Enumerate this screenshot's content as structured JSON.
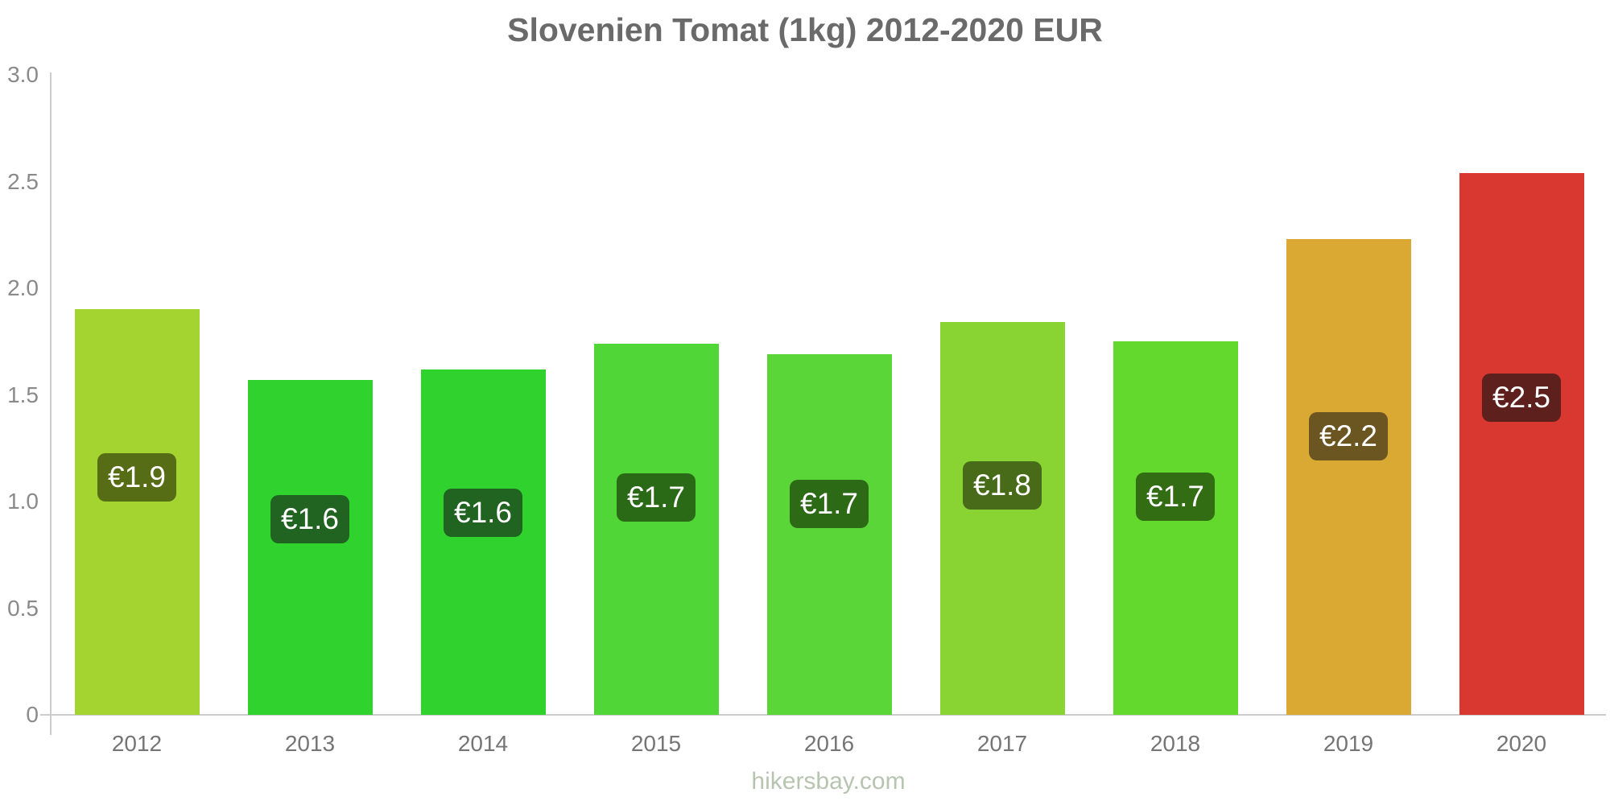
{
  "title": "Slovenien Tomat (1kg) 2012-2020 EUR",
  "footer": "hikersbay.com",
  "colors": {
    "axis": "#cccccc",
    "title_text": "#6a6a6a",
    "y_tick_text": "#8a8a8a",
    "x_tick_text": "#757575",
    "footer_text": "#b7c4b0",
    "bar_label_text": "#ffffff"
  },
  "chart_data": {
    "type": "bar",
    "title": "Slovenien Tomat (1kg) 2012-2020 EUR",
    "currency": "EUR",
    "categories": [
      "2012",
      "2013",
      "2014",
      "2015",
      "2016",
      "2017",
      "2018",
      "2019",
      "2020"
    ],
    "values": [
      1.9,
      1.57,
      1.62,
      1.74,
      1.69,
      1.84,
      1.75,
      2.23,
      2.54
    ],
    "bar_labels": [
      "€1.9",
      "€1.6",
      "€1.6",
      "€1.7",
      "€1.7",
      "€1.8",
      "€1.7",
      "€2.2",
      "€2.5"
    ],
    "bar_colors": [
      "#a4d42f",
      "#30d32e",
      "#30d32e",
      "#50d636",
      "#5ad638",
      "#89d433",
      "#63d92e",
      "#d9a934",
      "#d93831"
    ],
    "label_bg_colors": [
      "#566d15",
      "#216421",
      "#216421",
      "#2a6a16",
      "#2d6a16",
      "#476b19",
      "#326c13",
      "#6b5520",
      "#5e201c"
    ],
    "xlabel": "",
    "ylabel": "",
    "ylim": [
      0,
      3.0
    ],
    "y_ticks": [
      "3.0",
      "2.5",
      "2.0",
      "1.5",
      "1.0",
      "0.5",
      "0"
    ],
    "y_tick_values": [
      3.0,
      2.5,
      2.0,
      1.5,
      1.0,
      0.5,
      0
    ],
    "grid": false,
    "legend": false
  }
}
